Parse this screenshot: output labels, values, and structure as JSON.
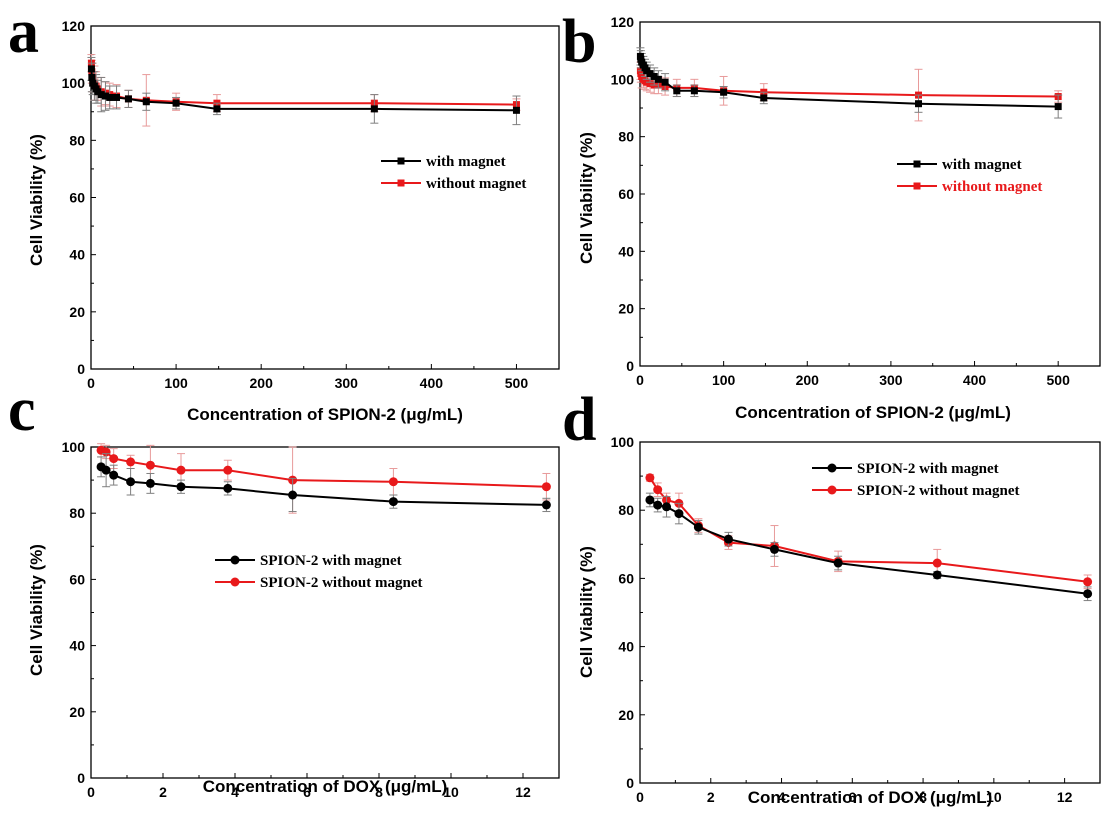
{
  "colors": {
    "with_magnet": "#000000",
    "without_magnet": "#e8191b",
    "error_bar_with": "#7f7f7f",
    "error_bar_without": "#e89a9a"
  },
  "chart_data": [
    {
      "panel": "a",
      "type": "line",
      "xlabel": "Concentration of SPION-2 (μg/mL)",
      "ylabel": "Cell Viability (%)",
      "xlim": [
        0,
        550
      ],
      "ylim": [
        0,
        120
      ],
      "xticks": [
        "0",
        "100",
        "200",
        "300",
        "400",
        "500"
      ],
      "yticks": [
        "0",
        "20",
        "40",
        "60",
        "80",
        "100",
        "120"
      ],
      "legend_position": "center-right",
      "marker": "square",
      "series": [
        {
          "name": "with magnet",
          "key": "with",
          "x": [
            0.5,
            1,
            2,
            4,
            6,
            8,
            12,
            17,
            22,
            30,
            44,
            65,
            100,
            148,
            333,
            500
          ],
          "y": [
            105,
            102,
            100,
            99,
            98,
            97,
            96,
            95.5,
            95,
            95,
            94.5,
            93.5,
            93,
            91,
            91,
            90.5
          ],
          "err": [
            4,
            5,
            4,
            5,
            5,
            4,
            6,
            5,
            4,
            4,
            3,
            3,
            2,
            2,
            5,
            5
          ]
        },
        {
          "name": "without magnet",
          "key": "without",
          "x": [
            0.5,
            1,
            2,
            4,
            6,
            8,
            12,
            17,
            22,
            30,
            44,
            65,
            100,
            148,
            333,
            500
          ],
          "y": [
            107,
            104,
            102,
            100,
            99,
            98,
            97,
            96.5,
            96,
            95.5,
            94.5,
            94,
            93.5,
            93,
            93,
            92.5
          ],
          "err": [
            3,
            4,
            5,
            6,
            5,
            4,
            5,
            4,
            4,
            4,
            3,
            9,
            3,
            3,
            3,
            2
          ]
        }
      ]
    },
    {
      "panel": "b",
      "type": "line",
      "xlabel": "Concentration of SPION-2 (μg/mL)",
      "ylabel": "Cell Viability (%)",
      "xlim": [
        0,
        550
      ],
      "ylim": [
        0,
        120
      ],
      "xticks": [
        "0",
        "100",
        "200",
        "300",
        "400",
        "500"
      ],
      "yticks": [
        "0",
        "20",
        "40",
        "60",
        "80",
        "100",
        "120"
      ],
      "legend_position": "center-right",
      "marker": "square",
      "series": [
        {
          "name": "with magnet",
          "key": "with",
          "x": [
            0.5,
            1,
            2,
            4,
            6,
            8,
            12,
            17,
            22,
            30,
            44,
            65,
            100,
            148,
            333,
            500
          ],
          "y": [
            108,
            107,
            106,
            105,
            104,
            103,
            102,
            101,
            100,
            99,
            96,
            96,
            95.5,
            93.5,
            91.5,
            90.5
          ],
          "err": [
            3,
            3,
            3,
            3,
            3,
            3,
            3,
            3,
            3,
            3,
            2,
            2,
            2,
            2,
            3,
            4
          ]
        },
        {
          "name": "without magnet",
          "key": "without",
          "x": [
            0.5,
            1,
            2,
            4,
            6,
            8,
            12,
            17,
            22,
            30,
            44,
            65,
            100,
            148,
            333,
            500
          ],
          "y": [
            103,
            102,
            101,
            100,
            99.5,
            99,
            98.5,
            98,
            98,
            97.5,
            97,
            97,
            96,
            95.5,
            94.5,
            94
          ],
          "err": [
            3,
            3,
            4,
            3,
            3,
            3,
            3,
            3,
            3,
            3,
            3,
            3,
            5,
            3,
            9,
            2
          ]
        }
      ]
    },
    {
      "panel": "c",
      "type": "line",
      "xlabel": "Concentration of DOX (μg/mL)",
      "ylabel": "Cell Viability (%)",
      "xlim": [
        0,
        13
      ],
      "ylim": [
        0,
        100
      ],
      "xticks": [
        "0",
        "2",
        "4",
        "6",
        "8",
        "10",
        "12"
      ],
      "yticks": [
        "0",
        "20",
        "40",
        "60",
        "80",
        "100"
      ],
      "legend_position": "center",
      "marker": "circle",
      "series": [
        {
          "name": "SPION-2 with magnet",
          "key": "with",
          "x": [
            0.28,
            0.42,
            0.63,
            1.1,
            1.65,
            2.5,
            3.8,
            5.6,
            8.4,
            12.65
          ],
          "y": [
            94,
            93,
            91.5,
            89.5,
            89,
            88,
            87.5,
            85.5,
            83.5,
            82.5
          ],
          "err": [
            3,
            5,
            3,
            4,
            3,
            2,
            2,
            5,
            2,
            2
          ]
        },
        {
          "name": "SPION-2 without magnet",
          "key": "without",
          "x": [
            0.28,
            0.42,
            0.63,
            1.1,
            1.65,
            2.5,
            3.8,
            5.6,
            8.4,
            12.65
          ],
          "y": [
            99,
            98.5,
            96.5,
            95.5,
            94.5,
            93,
            93,
            90,
            89.5,
            88
          ],
          "err": [
            2,
            2,
            3,
            2,
            6,
            5,
            3,
            10,
            4,
            4
          ]
        }
      ]
    },
    {
      "panel": "d",
      "type": "line",
      "xlabel": "Concentration of DOX (μg/mL)",
      "ylabel": "Cell Viability (%)",
      "xlim": [
        0,
        13
      ],
      "ylim": [
        0,
        100
      ],
      "xticks": [
        "0",
        "2",
        "4",
        "6",
        "8",
        "10",
        "12"
      ],
      "yticks": [
        "0",
        "20",
        "40",
        "60",
        "80",
        "100"
      ],
      "legend_position": "top-center",
      "marker": "circle",
      "series": [
        {
          "name": "SPION-2 with magnet",
          "key": "with",
          "x": [
            0.28,
            0.5,
            0.75,
            1.1,
            1.65,
            2.5,
            3.8,
            5.6,
            8.4,
            12.65
          ],
          "y": [
            83,
            81.5,
            81,
            79,
            75,
            71.5,
            68.5,
            64.5,
            61,
            55.5
          ],
          "err": [
            2,
            2,
            3,
            3,
            2,
            2,
            2,
            2,
            1,
            2
          ]
        },
        {
          "name": "SPION-2 without magnet",
          "key": "without",
          "x": [
            0.28,
            0.5,
            0.75,
            1.1,
            1.65,
            2.5,
            3.8,
            5.6,
            8.4,
            12.65
          ],
          "y": [
            89.5,
            86,
            83,
            82,
            75.5,
            70.5,
            69.5,
            65,
            64.5,
            59
          ],
          "err": [
            1,
            2,
            2,
            3,
            2,
            2,
            6,
            3,
            4,
            2
          ]
        }
      ]
    }
  ]
}
